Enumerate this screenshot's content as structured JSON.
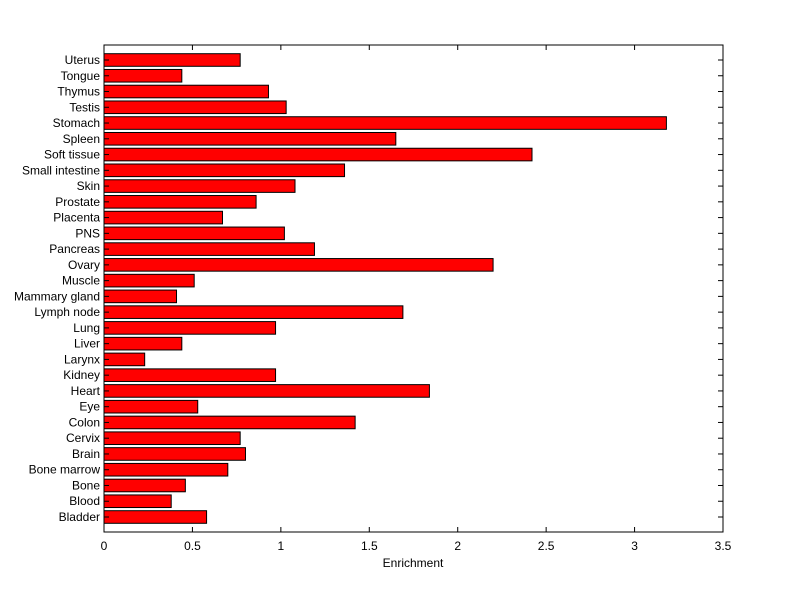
{
  "chart_data": {
    "type": "bar",
    "orientation": "horizontal",
    "title": "",
    "xlabel": "Enrichment",
    "ylabel": "",
    "xlim": [
      0,
      3.5
    ],
    "xticks": [
      "0",
      "0.5",
      "1",
      "1.5",
      "2",
      "2.5",
      "3",
      "3.5"
    ],
    "grid": false,
    "legend": "none",
    "bar_color": "#ff0000",
    "bar_edge_color": "#000000",
    "categories": [
      "Bladder",
      "Blood",
      "Bone",
      "Bone marrow",
      "Brain",
      "Cervix",
      "Colon",
      "Eye",
      "Heart",
      "Kidney",
      "Larynx",
      "Liver",
      "Lung",
      "Lymph node",
      "Mammary gland",
      "Muscle",
      "Ovary",
      "Pancreas",
      "PNS",
      "Placenta",
      "Prostate",
      "Skin",
      "Small intestine",
      "Soft tissue",
      "Spleen",
      "Stomach",
      "Testis",
      "Thymus",
      "Tongue",
      "Uterus"
    ],
    "values": [
      0.58,
      0.38,
      0.46,
      0.7,
      0.8,
      0.77,
      1.42,
      0.53,
      1.84,
      0.97,
      0.23,
      0.44,
      0.97,
      1.69,
      0.41,
      0.51,
      2.2,
      1.19,
      1.02,
      0.67,
      0.86,
      1.08,
      1.36,
      2.42,
      1.65,
      3.18,
      1.03,
      0.93,
      0.44,
      0.77
    ]
  }
}
